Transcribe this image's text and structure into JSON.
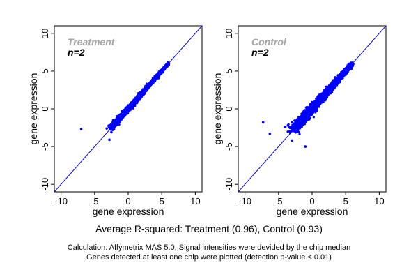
{
  "chart_data": [
    {
      "type": "scatter",
      "title": "Treatment",
      "subtitle": "n=2",
      "xlabel": "gene expression",
      "ylabel": "gene expression",
      "xlim": [
        -11,
        11
      ],
      "ylim": [
        -11,
        11
      ],
      "ticks": [
        -10,
        -5,
        0,
        5,
        10
      ],
      "ticklabels": [
        "-10",
        "-5",
        "0",
        "5",
        "10"
      ],
      "identity_line": true,
      "title_color": "#a6a6a6",
      "point_color": "#0000ff",
      "line_color": "#0000cc",
      "cloud": {
        "n_points": 3000,
        "x_range": [
          -2.5,
          6
        ],
        "r_squared": 0.96
      },
      "outliers": [
        [
          -7.0,
          -2.7
        ],
        [
          -2.8,
          -4.1
        ],
        [
          -2.5,
          -3.1
        ],
        [
          -3.2,
          -2.6
        ],
        [
          -2.9,
          -2.3
        ]
      ]
    },
    {
      "type": "scatter",
      "title": "Control",
      "subtitle": "n=2",
      "xlabel": "gene expression",
      "ylabel": "gene expression",
      "xlim": [
        -11,
        11
      ],
      "ylim": [
        -11,
        11
      ],
      "ticks": [
        -10,
        -5,
        0,
        5,
        10
      ],
      "ticklabels": [
        "-10",
        "-5",
        "0",
        "5",
        "10"
      ],
      "identity_line": true,
      "title_color": "#a6a6a6",
      "point_color": "#0000ff",
      "line_color": "#0000cc",
      "cloud": {
        "n_points": 3000,
        "x_range": [
          -2.8,
          6
        ],
        "r_squared": 0.93
      },
      "outliers": [
        [
          -7.3,
          -1.8
        ],
        [
          -6.3,
          -3.3
        ],
        [
          -3.2,
          -3.0
        ],
        [
          -4.0,
          -2.4
        ],
        [
          -3.0,
          -4.2
        ],
        [
          -1.0,
          -5.0
        ],
        [
          -3.6,
          -2.2
        ]
      ]
    }
  ],
  "summary": "Average R-squared: Treatment (0.96), Control (0.93)",
  "note_line1": "Calculation: Affymetrix MAS 5.0, Signal intensities were devided by the chip median",
  "note_line2": "Genes detected at least one chip were plotted (detection p-value < 0.01)"
}
